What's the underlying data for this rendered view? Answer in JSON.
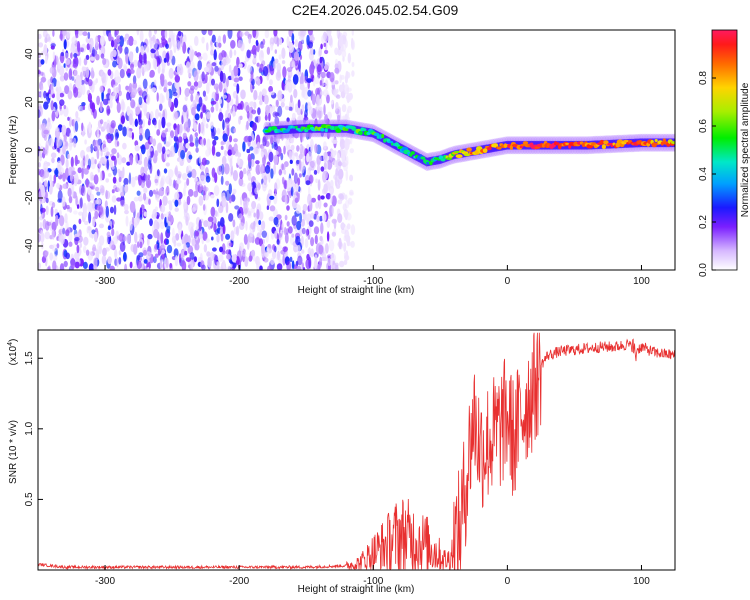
{
  "title": "C2E4.2026.045.02.54.G09",
  "chart_data": [
    {
      "type": "heatmap",
      "xlabel": "Height of straight line (km)",
      "ylabel": "Frequency (Hz)",
      "xlim": [
        -350,
        125
      ],
      "ylim": [
        -50,
        50
      ],
      "xticks": [
        -300,
        -200,
        -100,
        0,
        100
      ],
      "yticks": [
        -40,
        -20,
        0,
        20,
        40
      ],
      "colorbar": {
        "label": "Normalized spectral amplitude",
        "range": [
          0,
          1
        ],
        "ticks": [
          0.0,
          0.2,
          0.4,
          0.6,
          0.8
        ],
        "tick_labels": [
          "0.0",
          "0.2",
          "0.4",
          "0.6",
          "0.8"
        ]
      },
      "description_series": {
        "name": "Dominant frequency ridge",
        "x": [
          -180,
          -150,
          -120,
          -100,
          -80,
          -60,
          -50,
          -40,
          -20,
          0,
          20,
          60,
          100,
          125
        ],
        "y": [
          8,
          9,
          9,
          7,
          1,
          -5,
          -4,
          -2,
          0,
          2,
          2,
          2,
          3,
          3
        ],
        "amplitude": [
          0.45,
          0.5,
          0.55,
          0.5,
          0.45,
          0.4,
          0.55,
          0.7,
          0.85,
          0.9,
          0.95,
          0.9,
          0.85,
          0.8
        ]
      },
      "noise_region_x": [
        -350,
        -130
      ]
    },
    {
      "type": "line",
      "xlabel": "Height of straight line (km)",
      "ylabel": "SNR (10 * v/v)",
      "y_multiplier": "(x10",
      "y_multiplier_exp": "4",
      "y_multiplier_close": ")",
      "xlim": [
        -350,
        125
      ],
      "ylim": [
        0,
        1.7
      ],
      "xticks": [
        -300,
        -200,
        -100,
        0,
        100
      ],
      "yticks": [
        0.5,
        1.0,
        1.5
      ],
      "ytick_labels": [
        "0.5",
        "1.0",
        "1.5"
      ],
      "series": [
        {
          "name": "SNR",
          "color": "#e83030",
          "x": [
            -350,
            -330,
            -300,
            -250,
            -200,
            -150,
            -120,
            -110,
            -100,
            -90,
            -80,
            -70,
            -60,
            -50,
            -45,
            -40,
            -35,
            -30,
            -25,
            -20,
            -15,
            -10,
            -5,
            0,
            5,
            10,
            15,
            20,
            25,
            30,
            40,
            50,
            60,
            70,
            80,
            90,
            95,
            100,
            110,
            125
          ],
          "y": [
            0.04,
            0.02,
            0.02,
            0.02,
            0.02,
            0.02,
            0.03,
            0.05,
            0.12,
            0.18,
            0.25,
            0.22,
            0.18,
            0.1,
            0.06,
            0.15,
            0.3,
            0.7,
            1.1,
            0.85,
            0.9,
            0.95,
            1.0,
            1.1,
            0.9,
            1.1,
            1.2,
            1.3,
            1.45,
            1.52,
            1.55,
            1.56,
            1.57,
            1.58,
            1.58,
            1.6,
            1.55,
            1.58,
            1.54,
            1.52
          ]
        }
      ]
    }
  ]
}
